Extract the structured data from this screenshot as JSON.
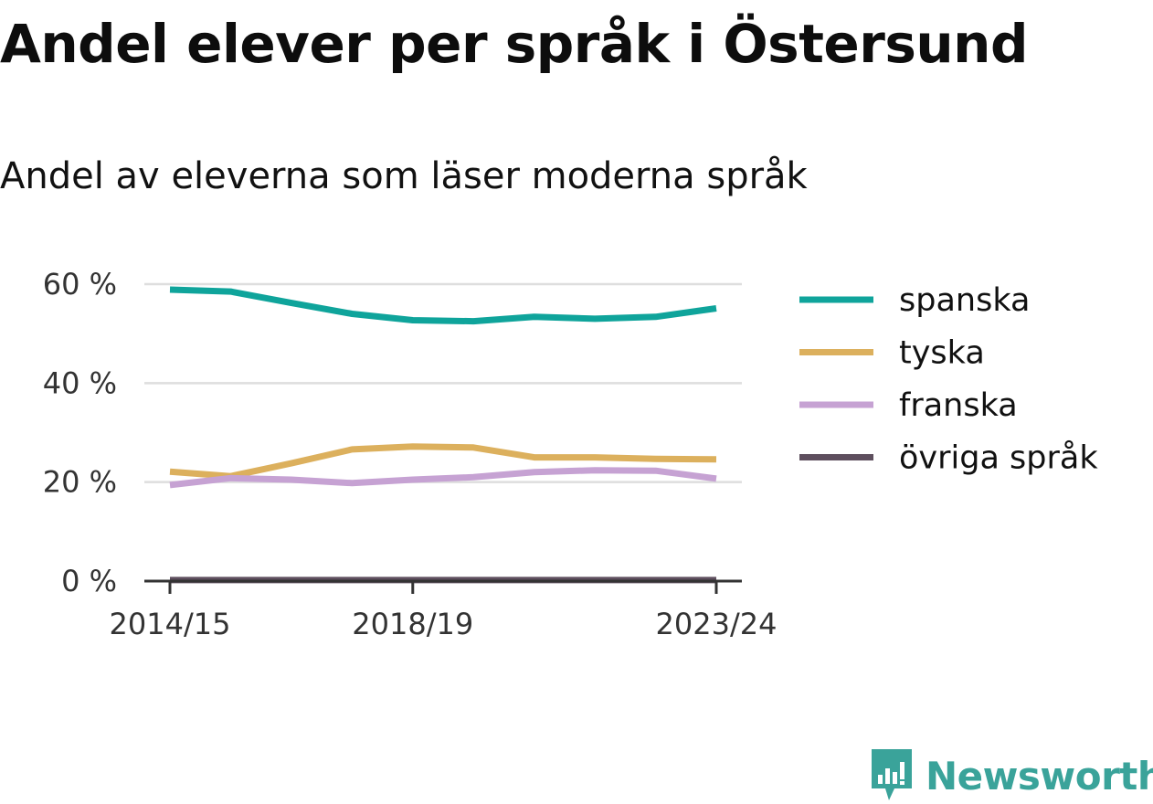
{
  "title": "Andel elever per språk i Östersund",
  "subtitle": "Andel av eleverna som läser moderna språk",
  "brand": {
    "name": "Newsworthy",
    "color": "#3aa39a"
  },
  "chart_data": {
    "type": "line",
    "x": [
      "2014/15",
      "2015/16",
      "2016/17",
      "2017/18",
      "2018/19",
      "2019/20",
      "2020/21",
      "2021/22",
      "2022/23",
      "2023/24"
    ],
    "xticks": [
      "2014/15",
      "2018/19",
      "2023/24"
    ],
    "yticks": [
      0,
      20,
      40,
      60
    ],
    "ytick_labels": [
      "0 %",
      "20 %",
      "40 %",
      "60 %"
    ],
    "ylim": [
      0,
      60
    ],
    "grid": "horizontal",
    "legend_position": "right",
    "series": [
      {
        "name": "spanska",
        "color": "#0fa49b",
        "values": [
          58.9,
          58.5,
          56.2,
          54.0,
          52.7,
          52.5,
          53.4,
          53.0,
          53.4,
          55.1
        ]
      },
      {
        "name": "tyska",
        "color": "#dcb05d",
        "values": [
          22.1,
          21.2,
          23.8,
          26.6,
          27.2,
          27.0,
          25.0,
          25.0,
          24.7,
          24.6
        ]
      },
      {
        "name": "franska",
        "color": "#c6a2d3",
        "values": [
          19.4,
          20.8,
          20.5,
          19.8,
          20.5,
          21.0,
          22.0,
          22.4,
          22.3,
          20.7
        ]
      },
      {
        "name": "övriga språk",
        "color": "#5e4f5e",
        "values": [
          0.2,
          0.2,
          0.2,
          0.2,
          0.2,
          0.2,
          0.2,
          0.2,
          0.2,
          0.2
        ]
      }
    ]
  }
}
